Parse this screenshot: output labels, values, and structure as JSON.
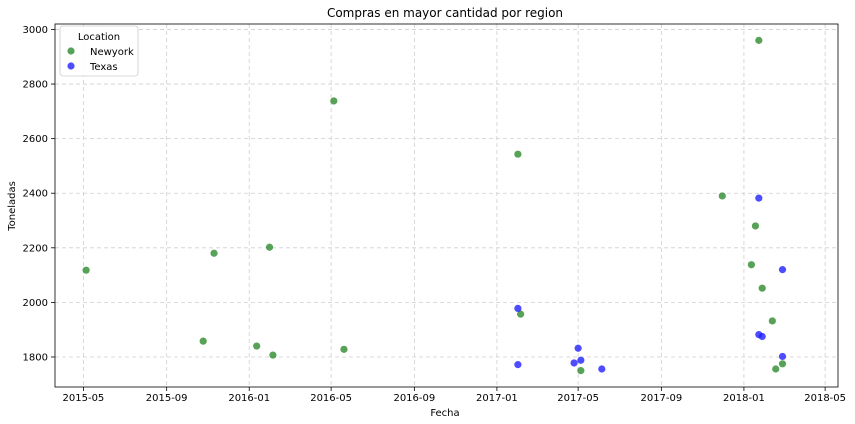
{
  "chart_data": {
    "type": "scatter",
    "title": "Compras en mayor cantidad por region",
    "xlabel": "Fecha",
    "ylabel": "Toneladas",
    "x_axis_type": "date",
    "xlim": [
      "2015-03-20",
      "2018-05-20"
    ],
    "ylim": [
      1690,
      3020
    ],
    "x_ticks": [
      "2015-05-01",
      "2015-09-01",
      "2016-01-01",
      "2016-05-01",
      "2016-09-01",
      "2017-01-01",
      "2017-05-01",
      "2017-09-01",
      "2018-01-01",
      "2018-05-01"
    ],
    "x_tick_labels": [
      "2015-05",
      "2015-09",
      "2016-01",
      "2016-05",
      "2016-09",
      "2017-01",
      "2017-05",
      "2017-09",
      "2018-01",
      "2018-05"
    ],
    "y_ticks": [
      1800,
      2000,
      2200,
      2400,
      2600,
      2800,
      3000
    ],
    "grid": true,
    "legend": {
      "title": "Location",
      "placement": "top-left"
    },
    "series": [
      {
        "name": "Newyork",
        "color": "#2e8b2e",
        "points": [
          {
            "x": "2015-05-05",
            "y": 2118
          },
          {
            "x": "2015-10-25",
            "y": 1858
          },
          {
            "x": "2015-11-10",
            "y": 2180
          },
          {
            "x": "2016-01-12",
            "y": 1840
          },
          {
            "x": "2016-01-31",
            "y": 2202
          },
          {
            "x": "2016-02-05",
            "y": 1807
          },
          {
            "x": "2016-05-05",
            "y": 2738
          },
          {
            "x": "2016-05-20",
            "y": 1828
          },
          {
            "x": "2017-02-01",
            "y": 2543
          },
          {
            "x": "2017-02-05",
            "y": 1957
          },
          {
            "x": "2017-05-05",
            "y": 1750
          },
          {
            "x": "2017-11-30",
            "y": 2390
          },
          {
            "x": "2018-01-12",
            "y": 2138
          },
          {
            "x": "2018-01-18",
            "y": 2280
          },
          {
            "x": "2018-01-23",
            "y": 2960
          },
          {
            "x": "2018-01-28",
            "y": 2052
          },
          {
            "x": "2018-02-12",
            "y": 1932
          },
          {
            "x": "2018-02-17",
            "y": 1756
          },
          {
            "x": "2018-02-27",
            "y": 1775
          }
        ]
      },
      {
        "name": "Texas",
        "color": "#2020ff",
        "points": [
          {
            "x": "2017-02-01",
            "y": 1978
          },
          {
            "x": "2017-02-01",
            "y": 1772
          },
          {
            "x": "2017-04-25",
            "y": 1778
          },
          {
            "x": "2017-05-01",
            "y": 1832
          },
          {
            "x": "2017-05-05",
            "y": 1788
          },
          {
            "x": "2017-06-05",
            "y": 1756
          },
          {
            "x": "2018-01-23",
            "y": 2382
          },
          {
            "x": "2018-01-23",
            "y": 1882
          },
          {
            "x": "2018-01-28",
            "y": 1875
          },
          {
            "x": "2018-02-27",
            "y": 2120
          },
          {
            "x": "2018-02-27",
            "y": 1802
          }
        ]
      }
    ]
  }
}
